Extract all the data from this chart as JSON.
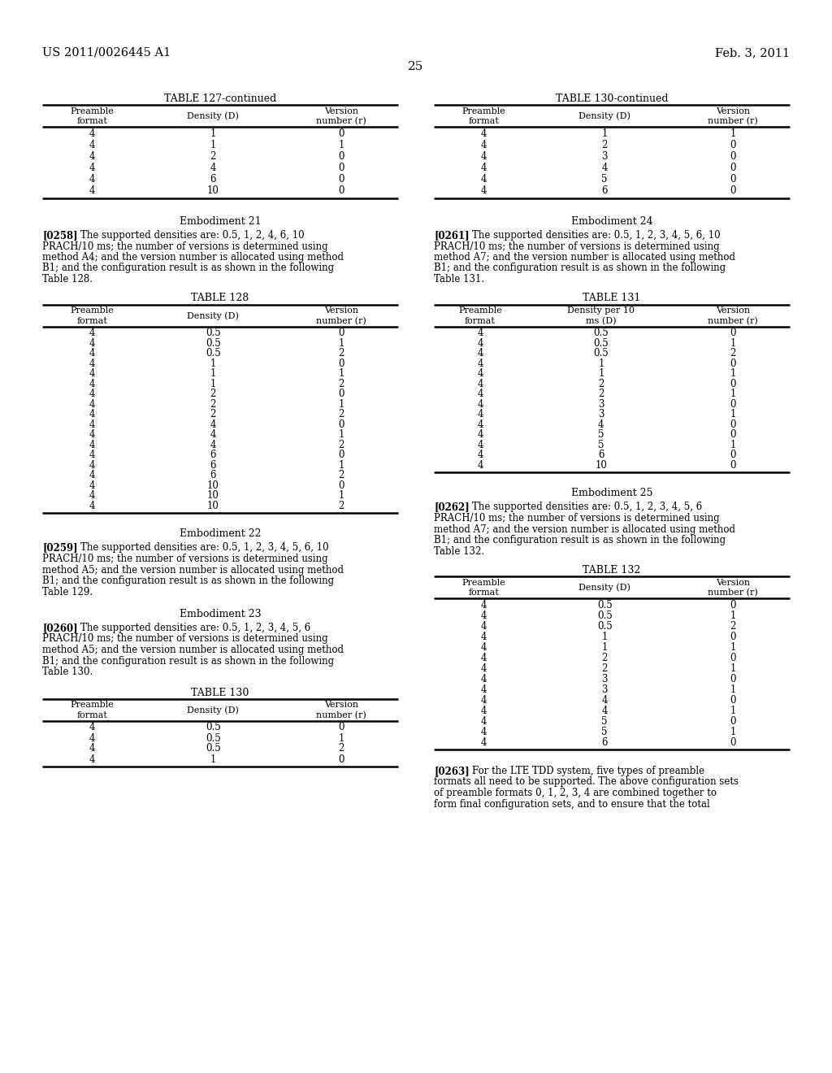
{
  "header_left": "US 2011/0026445 A1",
  "header_right": "Feb. 3, 2011",
  "page_number": "25",
  "background_color": "#ffffff",
  "text_color": "#000000",
  "table127_continued": {
    "title": "TABLE 127-continued",
    "headers": [
      "Preamble\nformat",
      "Density (D)",
      "Version\nnumber (r)"
    ],
    "rows": [
      [
        "4",
        "1",
        "0"
      ],
      [
        "4",
        "1",
        "1"
      ],
      [
        "4",
        "2",
        "0"
      ],
      [
        "4",
        "4",
        "0"
      ],
      [
        "4",
        "6",
        "0"
      ],
      [
        "4",
        "10",
        "0"
      ]
    ]
  },
  "embodiment21_title": "Embodiment 21",
  "embodiment21_text": "[0258]    The supported densities are: 0.5, 1, 2, 4, 6, 10\nPRACH/10 ms; the number of versions is determined using\nmethod A4; and the version number is allocated using method\nB1; and the configuration result is as shown in the following\nTable 128.",
  "table128": {
    "title": "TABLE 128",
    "headers": [
      "Preamble\nformat",
      "Density (D)",
      "Version\nnumber (r)"
    ],
    "rows": [
      [
        "4",
        "0.5",
        "0"
      ],
      [
        "4",
        "0.5",
        "1"
      ],
      [
        "4",
        "0.5",
        "2"
      ],
      [
        "4",
        "1",
        "0"
      ],
      [
        "4",
        "1",
        "1"
      ],
      [
        "4",
        "1",
        "2"
      ],
      [
        "4",
        "2",
        "0"
      ],
      [
        "4",
        "2",
        "1"
      ],
      [
        "4",
        "2",
        "2"
      ],
      [
        "4",
        "4",
        "0"
      ],
      [
        "4",
        "4",
        "1"
      ],
      [
        "4",
        "4",
        "2"
      ],
      [
        "4",
        "6",
        "0"
      ],
      [
        "4",
        "6",
        "1"
      ],
      [
        "4",
        "6",
        "2"
      ],
      [
        "4",
        "10",
        "0"
      ],
      [
        "4",
        "10",
        "1"
      ],
      [
        "4",
        "10",
        "2"
      ]
    ]
  },
  "embodiment22_title": "Embodiment 22",
  "embodiment22_text": "[0259]    The supported densities are: 0.5, 1, 2, 3, 4, 5, 6, 10\nPRACH/10 ms; the number of versions is determined using\nmethod A5; and the version number is allocated using method\nB1; and the configuration result is as shown in the following\nTable 129.",
  "embodiment23_title": "Embodiment 23",
  "embodiment23_text": "[0260]    The supported densities are: 0.5, 1, 2, 3, 4, 5, 6\nPRACH/10 ms; the number of versions is determined using\nmethod A5; and the version number is allocated using method\nB1; and the configuration result is as shown in the following\nTable 130.",
  "table130_title_left": "TABLE 130",
  "table130_headers_left": [
    "Preamble\nformat",
    "Density (D)",
    "Version\nnumber (r)"
  ],
  "table130_rows_left": [
    [
      "4",
      "0.5",
      "0"
    ],
    [
      "4",
      "0.5",
      "1"
    ],
    [
      "4",
      "0.5",
      "2"
    ],
    [
      "4",
      "1",
      "0"
    ]
  ],
  "table130_continued": {
    "title": "TABLE 130-continued",
    "headers": [
      "Preamble\nformat",
      "Density (D)",
      "Version\nnumber (r)"
    ],
    "rows": [
      [
        "4",
        "1",
        "1"
      ],
      [
        "4",
        "2",
        "0"
      ],
      [
        "4",
        "3",
        "0"
      ],
      [
        "4",
        "4",
        "0"
      ],
      [
        "4",
        "5",
        "0"
      ],
      [
        "4",
        "6",
        "0"
      ]
    ]
  },
  "embodiment24_title": "Embodiment 24",
  "embodiment24_text": "[0261]    The supported densities are: 0.5, 1, 2, 3, 4, 5, 6, 10\nPRACH/10 ms; the number of versions is determined using\nmethod A7; and the version number is allocated using method\nB1; and the configuration result is as shown in the following\nTable 131.",
  "table131": {
    "title": "TABLE 131",
    "headers": [
      "Preamble\nformat",
      "Density per 10\nms (D)",
      "Version\nnumber (r)"
    ],
    "rows": [
      [
        "4",
        "0.5",
        "0"
      ],
      [
        "4",
        "0.5",
        "1"
      ],
      [
        "4",
        "0.5",
        "2"
      ],
      [
        "4",
        "1",
        "0"
      ],
      [
        "4",
        "1",
        "1"
      ],
      [
        "4",
        "2",
        "0"
      ],
      [
        "4",
        "2",
        "1"
      ],
      [
        "4",
        "3",
        "0"
      ],
      [
        "4",
        "3",
        "1"
      ],
      [
        "4",
        "4",
        "0"
      ],
      [
        "4",
        "5",
        "0"
      ],
      [
        "4",
        "5",
        "1"
      ],
      [
        "4",
        "6",
        "0"
      ],
      [
        "4",
        "10",
        "0"
      ]
    ]
  },
  "embodiment25_title": "Embodiment 25",
  "embodiment25_text": "[0262]    The supported densities are: 0.5, 1, 2, 3, 4, 5, 6\nPRACH/10 ms; the number of versions is determined using\nmethod A7; and the version number is allocated using method\nB1; and the configuration result is as shown in the following\nTable 132.",
  "table132": {
    "title": "TABLE 132",
    "headers": [
      "Preamble\nformat",
      "Density (D)",
      "Version\nnumber (r)"
    ],
    "rows": [
      [
        "4",
        "0.5",
        "0"
      ],
      [
        "4",
        "0.5",
        "1"
      ],
      [
        "4",
        "0.5",
        "2"
      ],
      [
        "4",
        "1",
        "0"
      ],
      [
        "4",
        "1",
        "1"
      ],
      [
        "4",
        "2",
        "0"
      ],
      [
        "4",
        "2",
        "1"
      ],
      [
        "4",
        "3",
        "0"
      ],
      [
        "4",
        "3",
        "1"
      ],
      [
        "4",
        "4",
        "0"
      ],
      [
        "4",
        "4",
        "1"
      ],
      [
        "4",
        "5",
        "0"
      ],
      [
        "4",
        "5",
        "1"
      ],
      [
        "4",
        "6",
        "0"
      ]
    ]
  },
  "footer_text": "[0263]    For the LTE TDD system, five types of preamble\nformats all need to be supported. The above configuration sets\nof preamble formats 0, 1, 2, 3, 4 are combined together to\nform final configuration sets, and to ensure that the total"
}
